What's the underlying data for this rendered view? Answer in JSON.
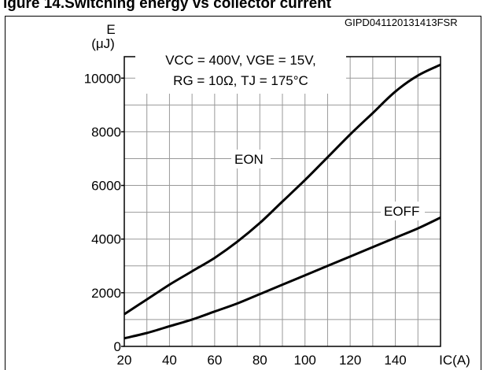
{
  "header": {
    "title_fragment": "igure 14.Switching energy vs collector current"
  },
  "figure_code": "GIPD041120131413FSR",
  "chart_data": {
    "type": "line",
    "ylabel_line1": "E",
    "ylabel_line2": "(μJ)",
    "xlabel": "IC(A)",
    "xlim": [
      20,
      160
    ],
    "ylim": [
      0,
      10800
    ],
    "xticks": [
      20,
      40,
      60,
      80,
      100,
      120,
      140
    ],
    "yticks": [
      0,
      2000,
      4000,
      6000,
      8000,
      10000
    ],
    "grid": true,
    "conditions_line1": "VCC = 400V, VGE = 15V,",
    "conditions_line2": "RG = 10Ω, TJ = 175°C",
    "series": [
      {
        "name": "EON",
        "x": [
          20,
          30,
          40,
          50,
          60,
          70,
          80,
          90,
          100,
          110,
          120,
          130,
          140,
          150,
          160
        ],
        "y": [
          1200,
          1750,
          2300,
          2800,
          3300,
          3900,
          4600,
          5400,
          6200,
          7050,
          7900,
          8700,
          9500,
          10100,
          10500
        ]
      },
      {
        "name": "EOFF",
        "x": [
          20,
          30,
          40,
          50,
          60,
          70,
          80,
          90,
          100,
          110,
          120,
          130,
          140,
          150,
          160
        ],
        "y": [
          300,
          500,
          750,
          1000,
          1300,
          1600,
          1950,
          2300,
          2650,
          3000,
          3350,
          3700,
          4050,
          4400,
          4800
        ]
      }
    ]
  }
}
